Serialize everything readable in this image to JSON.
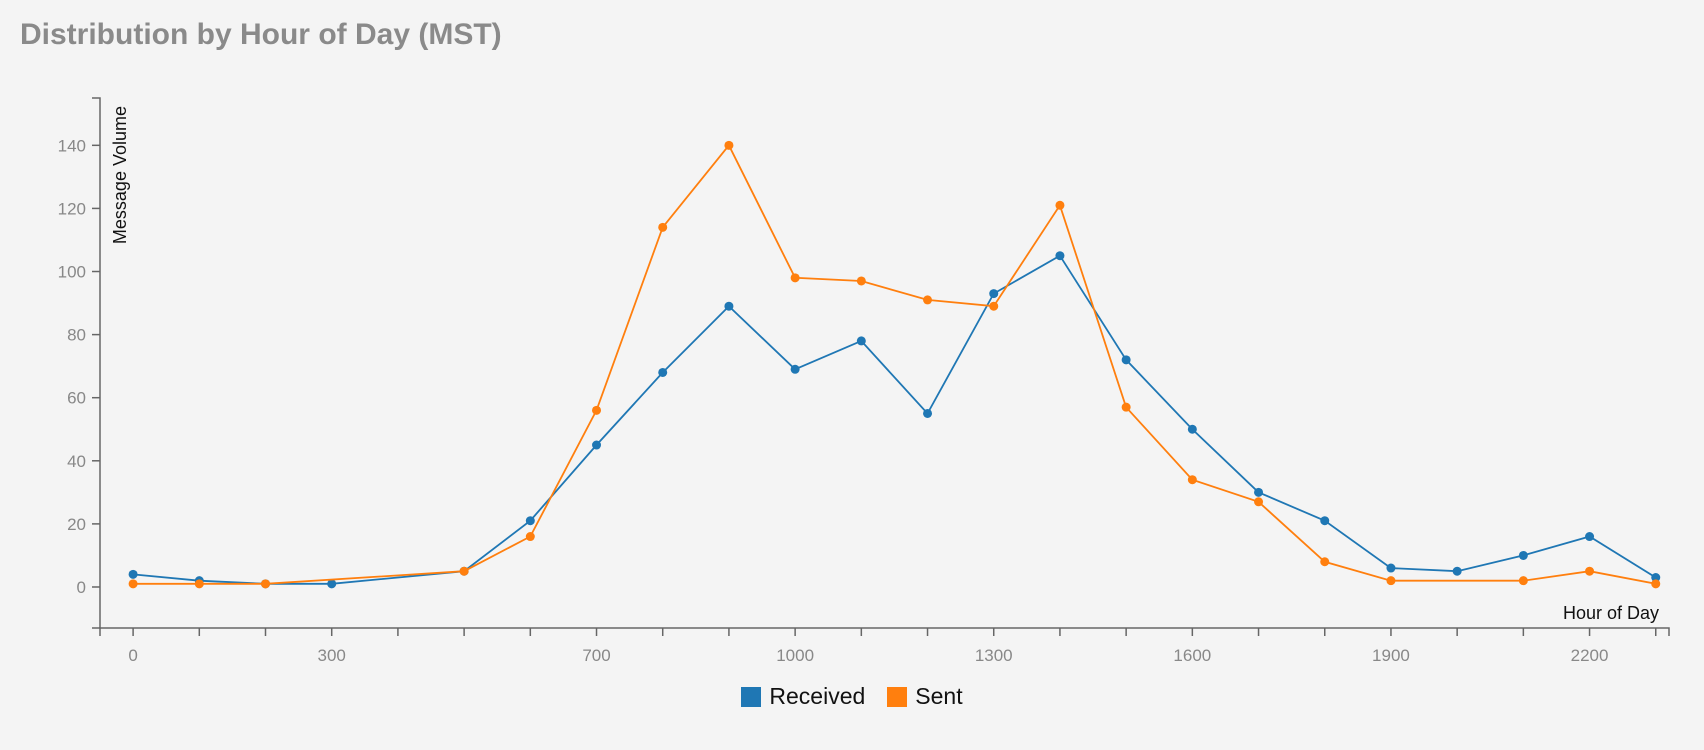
{
  "chart_data": {
    "type": "line",
    "title": "Distribution by Hour of Day (MST)",
    "xlabel": "Hour of Day",
    "ylabel": "Message Volume",
    "xlim": [
      -50,
      2320
    ],
    "ylim": [
      -13,
      155
    ],
    "x_ticks": [
      0,
      100,
      200,
      300,
      400,
      500,
      600,
      700,
      800,
      900,
      1000,
      1100,
      1200,
      1300,
      1400,
      1500,
      1600,
      1700,
      1800,
      1900,
      2000,
      2100,
      2200,
      2300
    ],
    "x_tick_labels": [
      "0",
      "",
      "",
      "300",
      "",
      "",
      "",
      "700",
      "",
      "",
      "1000",
      "",
      "",
      "1300",
      "",
      "",
      "1600",
      "",
      "",
      "1900",
      "",
      "",
      "2200",
      ""
    ],
    "y_ticks": [
      0,
      20,
      40,
      60,
      80,
      100,
      120,
      140
    ],
    "y_tick_labels": [
      "0",
      "20",
      "40",
      "60",
      "80",
      "100",
      "120",
      "140"
    ],
    "grid": false,
    "legend": "bottom-center",
    "series": [
      {
        "name": "Received",
        "color": "#1f77b4",
        "points": [
          [
            0,
            4
          ],
          [
            100,
            2
          ],
          [
            200,
            1
          ],
          [
            300,
            1
          ],
          [
            500,
            5
          ],
          [
            600,
            21
          ],
          [
            700,
            45
          ],
          [
            800,
            68
          ],
          [
            900,
            89
          ],
          [
            1000,
            69
          ],
          [
            1100,
            78
          ],
          [
            1200,
            55
          ],
          [
            1300,
            93
          ],
          [
            1400,
            105
          ],
          [
            1500,
            72
          ],
          [
            1600,
            50
          ],
          [
            1700,
            30
          ],
          [
            1800,
            21
          ],
          [
            1900,
            6
          ],
          [
            2000,
            5
          ],
          [
            2100,
            10
          ],
          [
            2200,
            16
          ],
          [
            2300,
            3
          ]
        ]
      },
      {
        "name": "Sent",
        "color": "#ff7f0e",
        "points": [
          [
            0,
            1
          ],
          [
            100,
            1
          ],
          [
            200,
            1
          ],
          [
            500,
            5
          ],
          [
            600,
            16
          ],
          [
            700,
            56
          ],
          [
            800,
            114
          ],
          [
            900,
            140
          ],
          [
            1000,
            98
          ],
          [
            1100,
            97
          ],
          [
            1200,
            91
          ],
          [
            1300,
            89
          ],
          [
            1400,
            121
          ],
          [
            1500,
            57
          ],
          [
            1600,
            34
          ],
          [
            1700,
            27
          ],
          [
            1800,
            8
          ],
          [
            1900,
            2
          ],
          [
            2100,
            2
          ],
          [
            2200,
            5
          ],
          [
            2300,
            1
          ]
        ]
      }
    ]
  }
}
